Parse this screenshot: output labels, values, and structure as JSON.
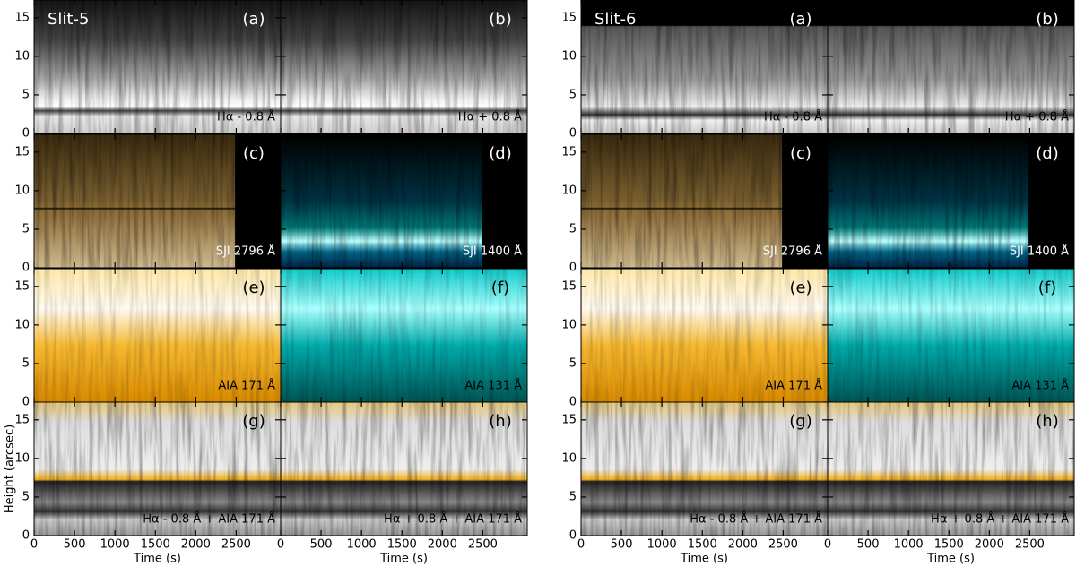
{
  "axes": {
    "xlabel": "Time (s)",
    "ylabel": "Height (arcsec)",
    "xlim": [
      0,
      3050
    ],
    "ylim": [
      0,
      17.3
    ],
    "xticks": [
      0,
      500,
      1000,
      1500,
      2000,
      2500
    ],
    "yticks": [
      0,
      5,
      10,
      15
    ]
  },
  "groups": [
    {
      "title": "Slit-5",
      "panels": [
        {
          "letter": "(a)",
          "label": "Hα - 0.8 Å"
        },
        {
          "letter": "(b)",
          "label": "Hα + 0.8 Å"
        },
        {
          "letter": "(c)",
          "label": "SJI 2796 Å"
        },
        {
          "letter": "(d)",
          "label": "SJI 1400 Å"
        },
        {
          "letter": "(e)",
          "label": "AIA 171 Å"
        },
        {
          "letter": "(f)",
          "label": "AIA 131 Å"
        },
        {
          "letter": "(g)",
          "label": "Hα - 0.8 Å + AIA 171 Å"
        },
        {
          "letter": "(h)",
          "label": "Hα + 0.8 Å + AIA 171 Å"
        }
      ]
    },
    {
      "title": "Slit-6",
      "panels": [
        {
          "letter": "(a)",
          "label": "Hα - 0.8 Å"
        },
        {
          "letter": "(b)",
          "label": "Hα + 0.8 Å"
        },
        {
          "letter": "(c)",
          "label": "SJI 2796 Å"
        },
        {
          "letter": "(d)",
          "label": "SJI 1400 Å"
        },
        {
          "letter": "(e)",
          "label": "AIA 171 Å"
        },
        {
          "letter": "(f)",
          "label": "AIA 131 Å"
        },
        {
          "letter": "(g)",
          "label": "Hα - 0.8 Å + AIA 171 Å"
        },
        {
          "letter": "(h)",
          "label": "Hα + 0.8 Å + AIA 171 Å"
        }
      ]
    }
  ]
}
